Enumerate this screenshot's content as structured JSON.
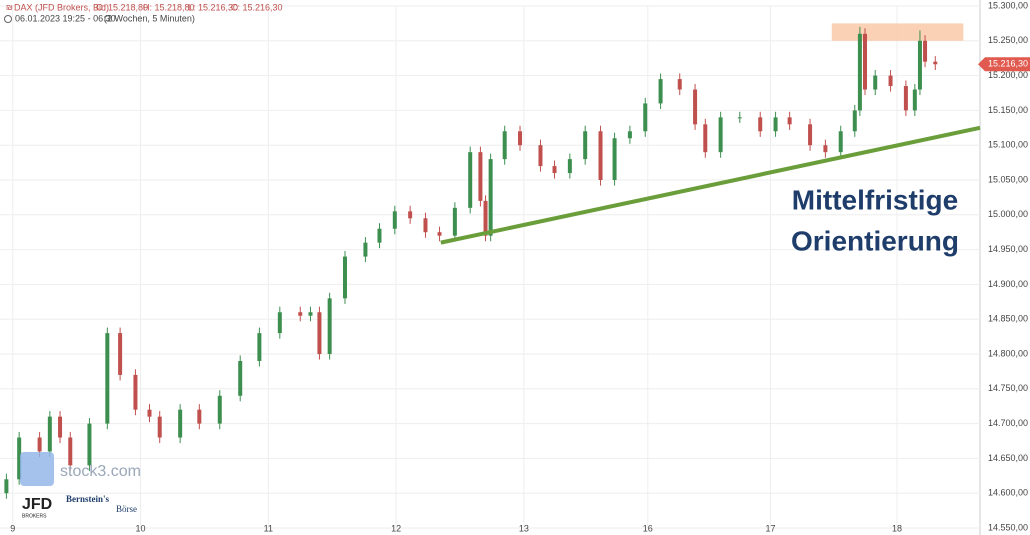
{
  "chart_data": {
    "type": "candlestick",
    "header": {
      "symbol": "DAX (JFD Brokers, Bid)",
      "ohlc": [
        "O: 15.218,80",
        "H: 15.218,80",
        "L: 15.216,30",
        "C: 15.216,30"
      ],
      "period": "06.01.2023 19:25 - 06:30",
      "interval": "(2 Wochen, 5 Minuten)"
    },
    "x": [
      -0.05,
      0.05,
      0.21,
      0.29,
      0.37,
      0.45,
      0.6,
      0.74,
      0.84,
      0.96,
      1.07,
      1.15,
      1.31,
      1.46,
      1.62,
      1.78,
      1.93,
      2.09,
      2.25,
      2.33,
      2.4,
      2.48,
      2.6,
      2.76,
      2.87,
      2.99,
      3.11,
      3.23,
      3.34,
      3.46,
      3.58,
      3.66,
      3.7,
      3.74,
      3.85,
      3.97,
      4.13,
      4.24,
      4.36,
      4.48,
      4.6,
      4.71,
      4.83,
      4.95,
      5.07,
      5.22,
      5.34,
      5.42,
      5.54,
      5.69,
      5.85,
      5.97,
      6.08,
      6.24,
      6.36,
      6.48,
      6.59,
      6.63,
      6.67,
      6.75,
      6.87,
      6.99,
      7.06,
      7.1,
      7.14,
      7.22
    ],
    "open": [
      14600,
      14620,
      14680,
      14660,
      14710,
      14680,
      14640,
      14700,
      14830,
      14770,
      14720,
      14710,
      14680,
      14720,
      14700,
      14740,
      14790,
      14830,
      14860,
      14855,
      14860,
      14800,
      14880,
      14940,
      14960,
      14980,
      15005,
      14995,
      14975,
      14970,
      15010,
      15090,
      15020,
      14970,
      15080,
      15120,
      15100,
      15070,
      15060,
      15080,
      15120,
      15050,
      15110,
      15120,
      15160,
      15195,
      15180,
      15130,
      15090,
      15140,
      15140,
      15120,
      15140,
      15130,
      15100,
      15090,
      15120,
      15150,
      15260,
      15180,
      15200,
      15185,
      15150,
      15180,
      15250,
      15220
    ],
    "high": [
      14628,
      14688,
      14688,
      14718,
      14718,
      14688,
      14708,
      14838,
      14838,
      14778,
      14728,
      14718,
      14728,
      14728,
      14748,
      14798,
      14838,
      14868,
      14868,
      14868,
      14868,
      14888,
      14948,
      14968,
      14988,
      15013,
      15013,
      15003,
      14983,
      15018,
      15098,
      15098,
      15028,
      15088,
      15128,
      15128,
      15108,
      15078,
      15088,
      15128,
      15128,
      15118,
      15128,
      15168,
      15203,
      15203,
      15188,
      15138,
      15148,
      15148,
      15148,
      15148,
      15148,
      15138,
      15108,
      15128,
      15158,
      15270,
      15268,
      15208,
      15208,
      15193,
      15188,
      15265,
      15258,
      15228
    ],
    "low": [
      14592,
      14612,
      14652,
      14652,
      14672,
      14632,
      14632,
      14692,
      14762,
      14712,
      14702,
      14672,
      14672,
      14692,
      14692,
      14732,
      14782,
      14822,
      14847,
      14847,
      14792,
      14792,
      14872,
      14932,
      14952,
      14972,
      14987,
      14967,
      14962,
      14962,
      15002,
      15012,
      14962,
      14962,
      15072,
      15092,
      15062,
      15052,
      15052,
      15072,
      15042,
      15042,
      15102,
      15112,
      15152,
      15172,
      15122,
      15082,
      15082,
      15132,
      15112,
      15112,
      15122,
      15092,
      15082,
      15082,
      15112,
      15142,
      15172,
      15172,
      15177,
      15142,
      15142,
      15172,
      15212,
      15208
    ],
    "close": [
      14620,
      14680,
      14660,
      14710,
      14680,
      14640,
      14700,
      14830,
      14770,
      14720,
      14710,
      14680,
      14720,
      14700,
      14740,
      14790,
      14830,
      14860,
      14855,
      14860,
      14800,
      14880,
      14940,
      14960,
      14980,
      15005,
      14995,
      14975,
      14970,
      15010,
      15090,
      15020,
      14970,
      15080,
      15120,
      15100,
      15070,
      15060,
      15080,
      15120,
      15050,
      15110,
      15120,
      15160,
      15195,
      15180,
      15130,
      15090,
      15140,
      15140,
      15120,
      15140,
      15130,
      15100,
      15090,
      15120,
      15150,
      15260,
      15180,
      15200,
      15185,
      15150,
      15180,
      15250,
      15220,
      15216.3
    ],
    "up_color": "#3d8f4f",
    "down_color": "#c0504d",
    "last_price": {
      "value": 15216.3,
      "label": "15.216,30"
    },
    "xlim": [
      -0.1,
      7.57
    ],
    "xticks": [
      {
        "value": 0,
        "label": "9"
      },
      {
        "value": 1,
        "label": "10"
      },
      {
        "value": 2,
        "label": "11"
      },
      {
        "value": 3,
        "label": "12"
      },
      {
        "value": 4,
        "label": "13"
      },
      {
        "value": 4.97,
        "label": "16"
      },
      {
        "value": 5.93,
        "label": "17"
      },
      {
        "value": 6.92,
        "label": "18"
      }
    ],
    "ylim": [
      14550,
      15300
    ],
    "yticks": [
      {
        "value": 14550,
        "label": "14.550,00"
      },
      {
        "value": 14600,
        "label": "14.600,00"
      },
      {
        "value": 14650,
        "label": "14.650,00"
      },
      {
        "value": 14700,
        "label": "14.700,00"
      },
      {
        "value": 14750,
        "label": "14.750,00"
      },
      {
        "value": 14800,
        "label": "14.800,00"
      },
      {
        "value": 14850,
        "label": "14.850,00"
      },
      {
        "value": 14900,
        "label": "14.900,00"
      },
      {
        "value": 14950,
        "label": "14.950,00"
      },
      {
        "value": 15000,
        "label": "15.000,00"
      },
      {
        "value": 15050,
        "label": "15.050,00"
      },
      {
        "value": 15100,
        "label": "15.100,00"
      },
      {
        "value": 15150,
        "label": "15.150,00"
      },
      {
        "value": 15200,
        "label": "15.200,00"
      },
      {
        "value": 15250,
        "label": "15.250,00"
      },
      {
        "value": 15300,
        "label": "15.300,00"
      }
    ],
    "grid": true,
    "trend_line": {
      "x": [
        3.35,
        7.57
      ],
      "y": [
        14960,
        15125
      ],
      "color": "#6a9e3a"
    },
    "resistance_zone": {
      "x": [
        6.41,
        7.44
      ],
      "y": [
        15250,
        15275
      ],
      "color": "#f9c9a8"
    },
    "annotation": [
      "Mittelfristige",
      "Orientierung"
    ],
    "logos": {
      "stock3": "stock3.com",
      "jfd": "JFD",
      "jfd_sub": "BROKERS",
      "bernstein": "Bernstein's",
      "boerse": "Börse"
    }
  }
}
